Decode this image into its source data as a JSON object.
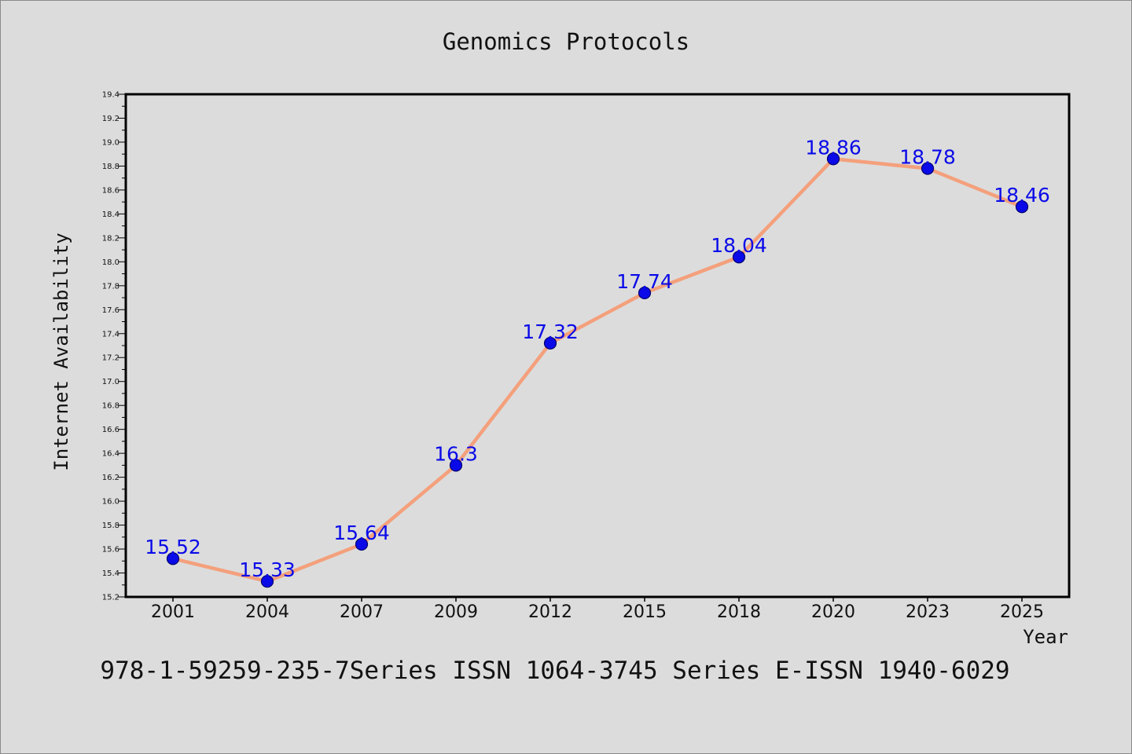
{
  "chart_data": {
    "type": "line",
    "title": "Genomics Protocols",
    "xlabel": "Year",
    "ylabel": "Internet Availability",
    "categories": [
      "2001",
      "2004",
      "2007",
      "2009",
      "2012",
      "2015",
      "2018",
      "2020",
      "2023",
      "2025"
    ],
    "series": [
      {
        "values": [
          15.52,
          15.33,
          15.64,
          16.3,
          17.32,
          17.74,
          18.04,
          18.86,
          18.78,
          18.46
        ],
        "labels": [
          "15.52",
          "15.33",
          "15.64",
          "16.3",
          "17.32",
          "17.74",
          "18.04",
          "18.86",
          "18.78",
          "18.46"
        ]
      }
    ],
    "ylim": [
      15.2,
      19.4
    ],
    "yticks": [
      "15.2",
      "15.4",
      "15.6",
      "15.8",
      "16.0",
      "16.2",
      "16.4",
      "16.6",
      "16.8",
      "17.0",
      "17.2",
      "17.4",
      "17.6",
      "17.8",
      "18.0",
      "18.2",
      "18.4",
      "18.6",
      "18.8",
      "19.0",
      "19.2",
      "19.4"
    ],
    "grid": false,
    "legend": "none",
    "colors": {
      "line": "#f4a07c",
      "marker": "#0a0ae8",
      "marker_edge": "#00006e",
      "data_label": "#0a0ae8",
      "background": "#dcdcdc"
    }
  },
  "footer_text": "978-1-59259-235-7Series ISSN 1064-3745 Series E-ISSN 1940-6029"
}
